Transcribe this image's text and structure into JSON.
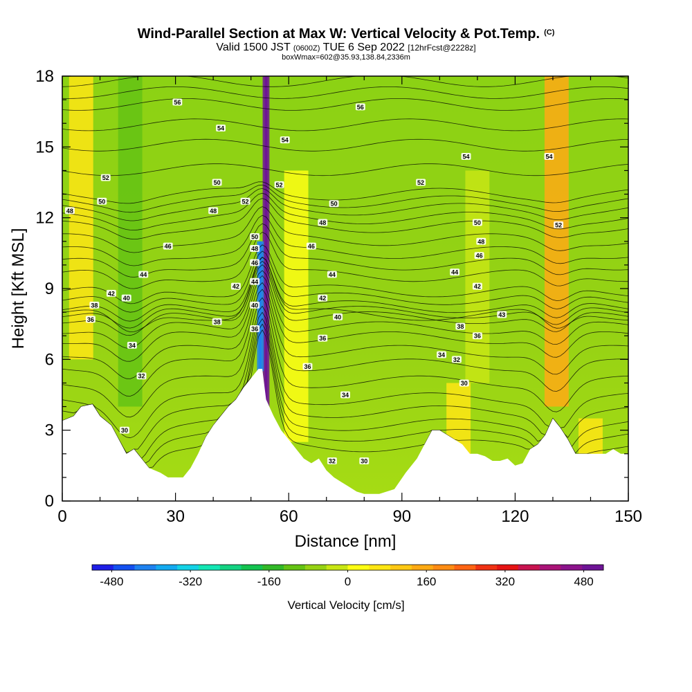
{
  "header": {
    "title": "Wind-Parallel Section at Max W: Vertical Velocity & Pot.Temp.",
    "copyright": "(C)",
    "valid_prefix": "Valid 1500 JST",
    "valid_utc": "(0600Z)",
    "valid_date": "TUE 6 Sep 2022",
    "forecast": "[12hrFcst@2228z]",
    "box_info": "boxWmax=602@35.93,138.84,2336m"
  },
  "chart_data": {
    "type": "heatmap",
    "title": "Wind-Parallel Section at Max W: Vertical Velocity & Pot.Temp.",
    "xlabel": "Distance [nm]",
    "ylabel": "Height [Kft MSL]",
    "xlim": [
      0,
      150
    ],
    "ylim": [
      0,
      18
    ],
    "x_ticks": [
      0,
      30,
      60,
      90,
      120,
      150
    ],
    "y_ticks": [
      0,
      3,
      6,
      9,
      12,
      15,
      18
    ],
    "colorbar": {
      "label": "Vertical Velocity [cm/s]",
      "range": [
        -520,
        520
      ],
      "tick_values": [
        -480,
        -320,
        -160,
        0,
        160,
        320,
        480
      ],
      "tick_labels": [
        "-480",
        "-320",
        "-160",
        "0",
        "160",
        "320",
        "480"
      ],
      "colors": [
        "#1e1ee6",
        "#1450f0",
        "#1e82f0",
        "#14aaf0",
        "#14d2e6",
        "#14e6b4",
        "#14d282",
        "#14c350",
        "#32b928",
        "#64c314",
        "#96d214",
        "#c8e614",
        "#ffff14",
        "#ffe614",
        "#ffc814",
        "#ffaa14",
        "#ff8c14",
        "#ff6414",
        "#f03214",
        "#e61414",
        "#c81450",
        "#aa1478",
        "#8c148c",
        "#6e1496"
      ]
    },
    "terrain_height_kft": {
      "x": [
        0,
        3,
        5,
        8,
        10,
        13,
        15,
        17,
        19,
        21,
        23,
        26,
        28,
        30,
        32,
        34,
        36,
        38,
        40,
        42,
        44,
        46,
        48,
        50,
        51,
        52,
        53,
        54,
        56,
        58,
        60,
        62,
        64,
        66,
        68,
        70,
        72,
        74,
        76,
        78,
        80,
        84,
        88,
        91,
        94,
        96,
        98,
        100,
        102,
        104,
        106,
        108,
        110,
        112,
        114,
        116,
        118,
        120,
        122,
        124,
        126,
        128,
        130,
        132,
        134,
        136,
        138,
        140,
        142,
        144,
        146,
        148,
        150
      ],
      "height": [
        3.4,
        3.6,
        4.0,
        4.1,
        3.6,
        3.2,
        2.6,
        2.0,
        2.2,
        1.8,
        1.4,
        1.2,
        1.0,
        1.0,
        1.0,
        1.4,
        2.0,
        2.7,
        3.2,
        3.6,
        4.0,
        4.3,
        4.8,
        5.2,
        5.4,
        5.6,
        5.6,
        4.3,
        3.6,
        3.0,
        2.6,
        2.2,
        1.8,
        1.6,
        1.8,
        1.3,
        1.0,
        0.8,
        0.6,
        0.4,
        0.3,
        0.3,
        0.5,
        1.2,
        1.8,
        2.4,
        3.0,
        3.0,
        2.8,
        2.6,
        2.4,
        2.0,
        2.0,
        1.9,
        1.7,
        1.7,
        1.8,
        1.5,
        1.6,
        2.2,
        2.4,
        2.8,
        3.5,
        3.1,
        2.6,
        2.0,
        2.0,
        2.0,
        2.0,
        2.0,
        2.2,
        2.0,
        2.0
      ]
    },
    "vertical_velocity_features": [
      {
        "x": 54,
        "y0": 3.6,
        "y1": 18,
        "peak_cms": 560,
        "note": "updraft core"
      },
      {
        "x": 52.5,
        "y0": 5.5,
        "y1": 11,
        "peak_cms": -420,
        "note": "downdraft core"
      },
      {
        "x": 131,
        "y0": 4.0,
        "y1": 18,
        "peak_cms": 130
      },
      {
        "x": 105,
        "y0": 2.0,
        "y1": 5.0,
        "peak_cms": 80
      },
      {
        "x": 140,
        "y0": 2.0,
        "y1": 3.5,
        "peak_cms": 70
      },
      {
        "x": 18,
        "y0": 4.0,
        "y1": 18,
        "peak_cms": -120
      },
      {
        "x": 5,
        "y0": 6.0,
        "y1": 18,
        "peak_cms": 70
      },
      {
        "x": 62,
        "y0": 2.5,
        "y1": 14,
        "peak_cms": 40
      },
      {
        "x": 110,
        "y0": 5.0,
        "y1": 14,
        "peak_cms": -40
      }
    ],
    "theta_contour_labels": [
      {
        "text": "56",
        "x": 30.5,
        "y": 16.9
      },
      {
        "text": "54",
        "x": 42,
        "y": 15.8
      },
      {
        "text": "54",
        "x": 59,
        "y": 15.3
      },
      {
        "text": "56",
        "x": 79,
        "y": 16.7
      },
      {
        "text": "54",
        "x": 107,
        "y": 14.6
      },
      {
        "text": "54",
        "x": 129,
        "y": 14.6
      },
      {
        "text": "52",
        "x": 11.5,
        "y": 13.7
      },
      {
        "text": "50",
        "x": 10.5,
        "y": 12.7
      },
      {
        "text": "48",
        "x": 2,
        "y": 12.3
      },
      {
        "text": "50",
        "x": 41,
        "y": 13.5
      },
      {
        "text": "52",
        "x": 48.5,
        "y": 12.7
      },
      {
        "text": "52",
        "x": 57.5,
        "y": 13.4
      },
      {
        "text": "52",
        "x": 95,
        "y": 13.5
      },
      {
        "text": "50",
        "x": 72,
        "y": 12.6
      },
      {
        "text": "48",
        "x": 40,
        "y": 12.3
      },
      {
        "text": "48",
        "x": 69,
        "y": 11.8
      },
      {
        "text": "50",
        "x": 110,
        "y": 11.8
      },
      {
        "text": "52",
        "x": 131.5,
        "y": 11.7
      },
      {
        "text": "50",
        "x": 51,
        "y": 11.2
      },
      {
        "text": "48",
        "x": 51,
        "y": 10.7
      },
      {
        "text": "46",
        "x": 28,
        "y": 10.8
      },
      {
        "text": "46",
        "x": 66,
        "y": 10.8
      },
      {
        "text": "48",
        "x": 111,
        "y": 11.0
      },
      {
        "text": "46",
        "x": 110.5,
        "y": 10.4
      },
      {
        "text": "46",
        "x": 51,
        "y": 10.1
      },
      {
        "text": "44",
        "x": 21.5,
        "y": 9.6
      },
      {
        "text": "44",
        "x": 71.5,
        "y": 9.6
      },
      {
        "text": "44",
        "x": 104,
        "y": 9.7
      },
      {
        "text": "44",
        "x": 51,
        "y": 9.3
      },
      {
        "text": "42",
        "x": 46,
        "y": 9.1
      },
      {
        "text": "42",
        "x": 110,
        "y": 9.1
      },
      {
        "text": "42",
        "x": 13,
        "y": 8.8
      },
      {
        "text": "42",
        "x": 69,
        "y": 8.6
      },
      {
        "text": "40",
        "x": 17,
        "y": 8.6
      },
      {
        "text": "40",
        "x": 51,
        "y": 8.3
      },
      {
        "text": "43",
        "x": 116.5,
        "y": 7.9
      },
      {
        "text": "38",
        "x": 8.5,
        "y": 8.3
      },
      {
        "text": "40",
        "x": 73,
        "y": 7.8
      },
      {
        "text": "36",
        "x": 7.5,
        "y": 7.7
      },
      {
        "text": "38",
        "x": 41,
        "y": 7.6
      },
      {
        "text": "38",
        "x": 105.5,
        "y": 7.4
      },
      {
        "text": "36",
        "x": 51,
        "y": 7.3
      },
      {
        "text": "36",
        "x": 69,
        "y": 6.9
      },
      {
        "text": "36",
        "x": 110,
        "y": 7.0
      },
      {
        "text": "34",
        "x": 18.5,
        "y": 6.6
      },
      {
        "text": "34",
        "x": 100.5,
        "y": 6.2
      },
      {
        "text": "32",
        "x": 104.5,
        "y": 6.0
      },
      {
        "text": "36",
        "x": 65,
        "y": 5.7
      },
      {
        "text": "32",
        "x": 21,
        "y": 5.3
      },
      {
        "text": "30",
        "x": 106.5,
        "y": 5.0
      },
      {
        "text": "34",
        "x": 75,
        "y": 4.5
      },
      {
        "text": "30",
        "x": 16.5,
        "y": 3.0
      },
      {
        "text": "32",
        "x": 71.5,
        "y": 1.7
      },
      {
        "text": "30",
        "x": 80,
        "y": 1.7
      }
    ]
  }
}
